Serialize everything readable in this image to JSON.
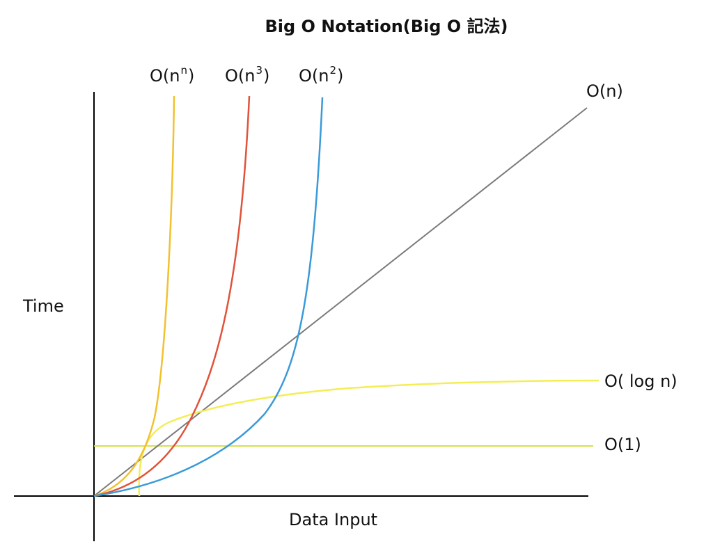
{
  "title": "Big O Notation(Big O 記法)",
  "axes": {
    "y_label": "Time",
    "x_label": "Data Input"
  },
  "curves": [
    {
      "label_base": "O(n",
      "label_sup": "n",
      "label_end": ")",
      "color": "#f2c12e"
    },
    {
      "label_base": "O(n",
      "label_sup": "3",
      "label_end": ")",
      "color": "#e0533a"
    },
    {
      "label_base": "O(n",
      "label_sup": "2",
      "label_end": ")",
      "color": "#3a9ad9"
    },
    {
      "label": "O(n)",
      "color": "#7a7a7a"
    },
    {
      "label": "O( log n)",
      "color": "#f3ee55"
    },
    {
      "label": "O(1)",
      "color": "#d4e24a"
    }
  ]
}
